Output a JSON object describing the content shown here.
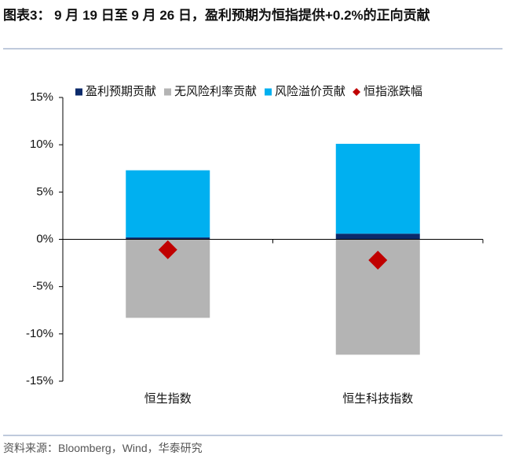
{
  "chart_data": {
    "type": "bar",
    "stacked": true,
    "title": "图表3： 9 月 19 日至 9 月 26 日，盈利预期为恒指提供+0.2%的正向贡献",
    "source": "资料来源：Bloomberg，Wind，华泰研究",
    "categories": [
      "恒生指数",
      "恒生科技指数"
    ],
    "series": [
      {
        "name": "盈利预期贡献",
        "color": "#0b2a6b",
        "values": [
          0.2,
          0.6
        ]
      },
      {
        "name": "无风险利率贡献",
        "color": "#b4b4b4",
        "values": [
          -8.3,
          -12.2
        ]
      },
      {
        "name": "风险溢价贡献",
        "color": "#00b0f0",
        "values": [
          7.1,
          9.5
        ]
      },
      {
        "name": "恒指涨跌幅",
        "color": "#c00000",
        "type": "scatter",
        "marker": "diamond",
        "values": [
          -1.1,
          -2.2
        ]
      }
    ],
    "ylim": [
      -15,
      15
    ],
    "yticks": [
      {
        "value": -15,
        "label": "-15%"
      },
      {
        "value": -10,
        "label": "-10%"
      },
      {
        "value": -5,
        "label": "-5%"
      },
      {
        "value": 0,
        "label": "0%"
      },
      {
        "value": 5,
        "label": "5%"
      },
      {
        "value": 10,
        "label": "10%"
      },
      {
        "value": 15,
        "label": "15%"
      }
    ],
    "grid": false,
    "legend": "top"
  }
}
